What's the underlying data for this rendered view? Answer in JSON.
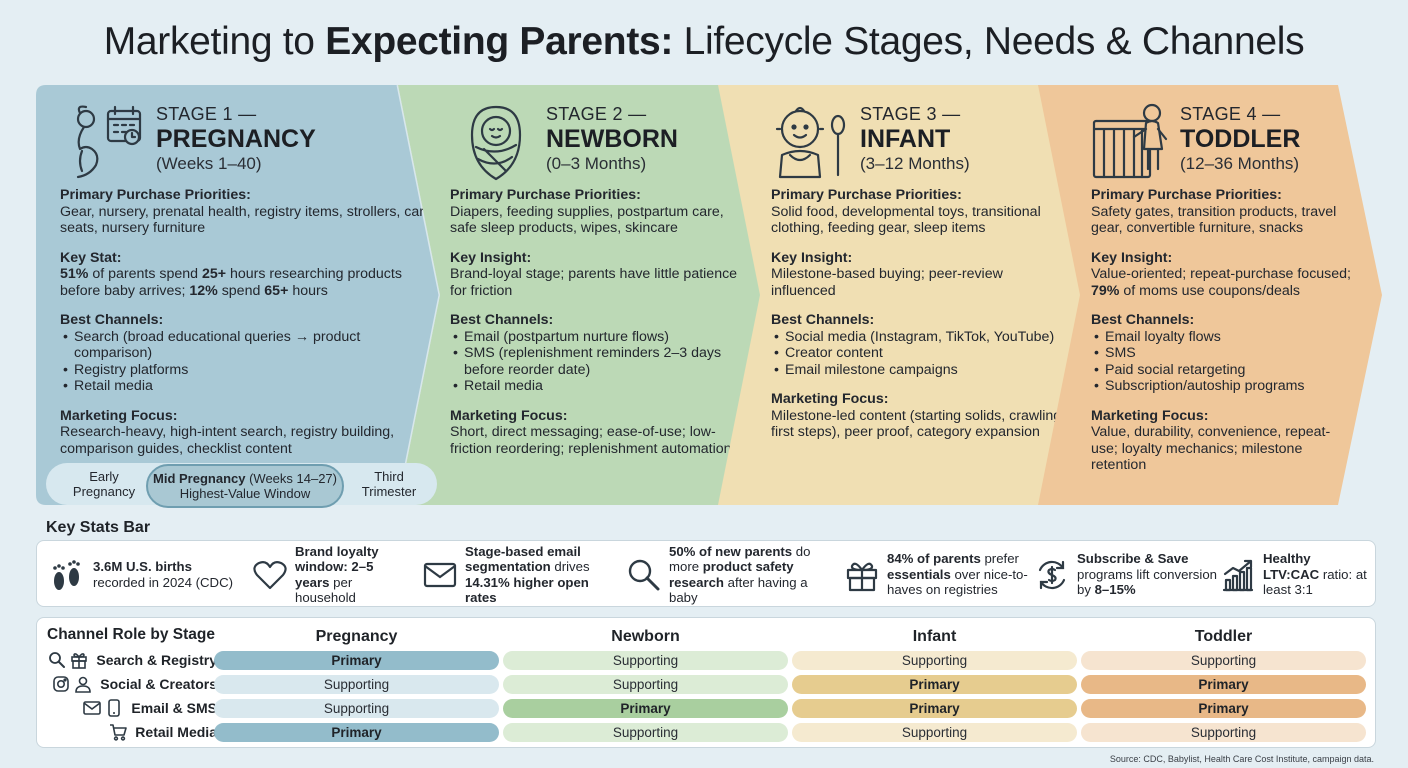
{
  "title": {
    "pre": "Marketing to ",
    "bold": "Expecting Parents:",
    "post": " Lifecycle Stages, Needs & Channels"
  },
  "stages": [
    {
      "num": "STAGE 1 —",
      "name": "PREGNANCY",
      "range": "(Weeks 1–40)",
      "color": "#a9c9d6",
      "icon": "pregnant-woman-calendar-icon",
      "priorities_h": "Primary Purchase Priorities:",
      "priorities": "Gear, nursery, prenatal health, registry items, strollers, car seats, nursery furniture",
      "insight_h": "Key Stat:",
      "insight": [
        {
          "b": "51%",
          "t": " of parents spend "
        },
        {
          "b": "25+",
          "t": " hours researching products before baby arrives; "
        },
        {
          "b": "12%",
          "t": " spend "
        },
        {
          "b": "65+",
          "t": " hours"
        }
      ],
      "channels_h": "Best Channels:",
      "channels": [
        "Search (broad educational queries → product comparison)",
        "Registry platforms",
        "Retail media"
      ],
      "focus_h": "Marketing Focus:",
      "focus": "Research-heavy, high-intent search, registry building, comparison guides, checklist content"
    },
    {
      "num": "STAGE 2 —",
      "name": "NEWBORN",
      "range": "(0–3 Months)",
      "color": "#bcd9b6",
      "icon": "swaddled-baby-icon",
      "priorities_h": "Primary Purchase Priorities:",
      "priorities": "Diapers, feeding supplies, postpartum care, safe sleep products, wipes, skincare",
      "insight_h": "Key Insight:",
      "insight": [
        {
          "b": "",
          "t": "Brand-loyal stage; parents have little patience for friction"
        }
      ],
      "channels_h": "Best Channels:",
      "channels": [
        "Email (postpartum nurture flows)",
        "SMS (replenishment reminders 2–3 days before reorder date)",
        "Retail media"
      ],
      "focus_h": "Marketing Focus:",
      "focus": "Short, direct messaging; ease-of-use; low-friction reordering; replenishment automation"
    },
    {
      "num": "STAGE 3 —",
      "name": "INFANT",
      "range": "(3–12 Months)",
      "color": "#f0dfb3",
      "icon": "baby-with-spoon-icon",
      "priorities_h": "Primary Purchase Priorities:",
      "priorities": "Solid food, developmental toys, transitional clothing, feeding gear, sleep items",
      "insight_h": "Key Insight:",
      "insight": [
        {
          "b": "",
          "t": "Milestone-based buying; peer-review influenced"
        }
      ],
      "channels_h": "Best Channels:",
      "channels": [
        "Social media (Instagram, TikTok, YouTube)",
        "Creator content",
        "Email milestone campaigns"
      ],
      "focus_h": "Marketing Focus:",
      "focus": "Milestone-led content (starting solids, crawling, first steps), peer proof, category expansion"
    },
    {
      "num": "STAGE 4 —",
      "name": "TODDLER",
      "range": "(12–36 Months)",
      "color": "#efc79a",
      "icon": "toddler-safety-gate-icon",
      "priorities_h": "Primary Purchase Priorities:",
      "priorities": "Safety gates, transition products, travel gear, convertible furniture, snacks",
      "insight_h": "Key Insight:",
      "insight": [
        {
          "b": "",
          "t": "Value-oriented; repeat-purchase focused; "
        },
        {
          "b": "79%",
          "t": " of moms use coupons/deals"
        }
      ],
      "channels_h": "Best Channels:",
      "channels": [
        "Email loyalty flows",
        "SMS",
        "Paid social retargeting",
        "Subscription/autoship programs"
      ],
      "focus_h": "Marketing Focus:",
      "focus": "Value, durability, convenience, repeat-use; loyalty mechanics; milestone retention"
    }
  ],
  "trimesters": {
    "early": "Early Pregnancy",
    "mid_bold": "Mid Pregnancy",
    "mid_rest": " (Weeks 14–27)",
    "mid_sub": "Highest-Value Window",
    "third": "Third Trimester"
  },
  "key_stats_title": "Key Stats Bar",
  "key_stats": [
    {
      "icon": "baby-footprints-icon",
      "parts": [
        {
          "b": "3.6M U.S. births"
        },
        {
          "t": " recorded in 2024 (CDC)"
        }
      ]
    },
    {
      "icon": "heart-icon",
      "parts": [
        {
          "b": "Brand loyalty window: 2–5 years"
        },
        {
          "t": " per household"
        }
      ]
    },
    {
      "icon": "envelope-icon",
      "parts": [
        {
          "b": "Stage-based email segmentation"
        },
        {
          "t": " drives "
        },
        {
          "b": "14.31% higher open rates"
        }
      ]
    },
    {
      "icon": "magnifier-icon",
      "parts": [
        {
          "b": "50% of new parents"
        },
        {
          "t": " do more "
        },
        {
          "b": "product safety research"
        },
        {
          "t": " after having a baby"
        }
      ]
    },
    {
      "icon": "gift-icon",
      "parts": [
        {
          "b": "84% of parents"
        },
        {
          "t": " prefer "
        },
        {
          "b": "essentials"
        },
        {
          "t": " over nice-to-haves on registries"
        }
      ]
    },
    {
      "icon": "dollar-cycle-icon",
      "parts": [
        {
          "b": "Subscribe & Save"
        },
        {
          "t": " programs lift conversion by "
        },
        {
          "b": "8–15%"
        }
      ]
    },
    {
      "icon": "growth-chart-icon",
      "parts": [
        {
          "b": "Healthy LTV:CAC"
        },
        {
          "t": " ratio: at least 3:1"
        }
      ]
    }
  ],
  "channel_table": {
    "title": "Channel Role by Stage",
    "columns": [
      "Pregnancy",
      "Newborn",
      "Infant",
      "Toddler"
    ],
    "rows": [
      {
        "label": "Search & Registry",
        "icons": [
          "search-icon",
          "gift-icon"
        ],
        "cells": [
          "Primary",
          "Supporting",
          "Supporting",
          "Supporting"
        ]
      },
      {
        "label": "Social & Creators",
        "icons": [
          "instagram-icon",
          "person-icon"
        ],
        "cells": [
          "Supporting",
          "Supporting",
          "Primary",
          "Primary"
        ]
      },
      {
        "label": "Email & SMS",
        "icons": [
          "envelope-icon",
          "phone-icon"
        ],
        "cells": [
          "Supporting",
          "Primary",
          "Primary",
          "Primary"
        ]
      },
      {
        "label": "Retail Media",
        "icons": [
          "cart-icon"
        ],
        "cells": [
          "Primary",
          "Supporting",
          "Supporting",
          "Supporting"
        ]
      }
    ],
    "colors": {
      "primary": [
        "#93bccb",
        "#a9cf9f",
        "#e6cc8f",
        "#e8b887"
      ],
      "supporting": [
        "#d9e8ee",
        "#dcecd6",
        "#f5ead0",
        "#f6e4d0"
      ]
    }
  },
  "source": "Source: CDC, Babylist, Health Care Cost Institute, campaign data."
}
